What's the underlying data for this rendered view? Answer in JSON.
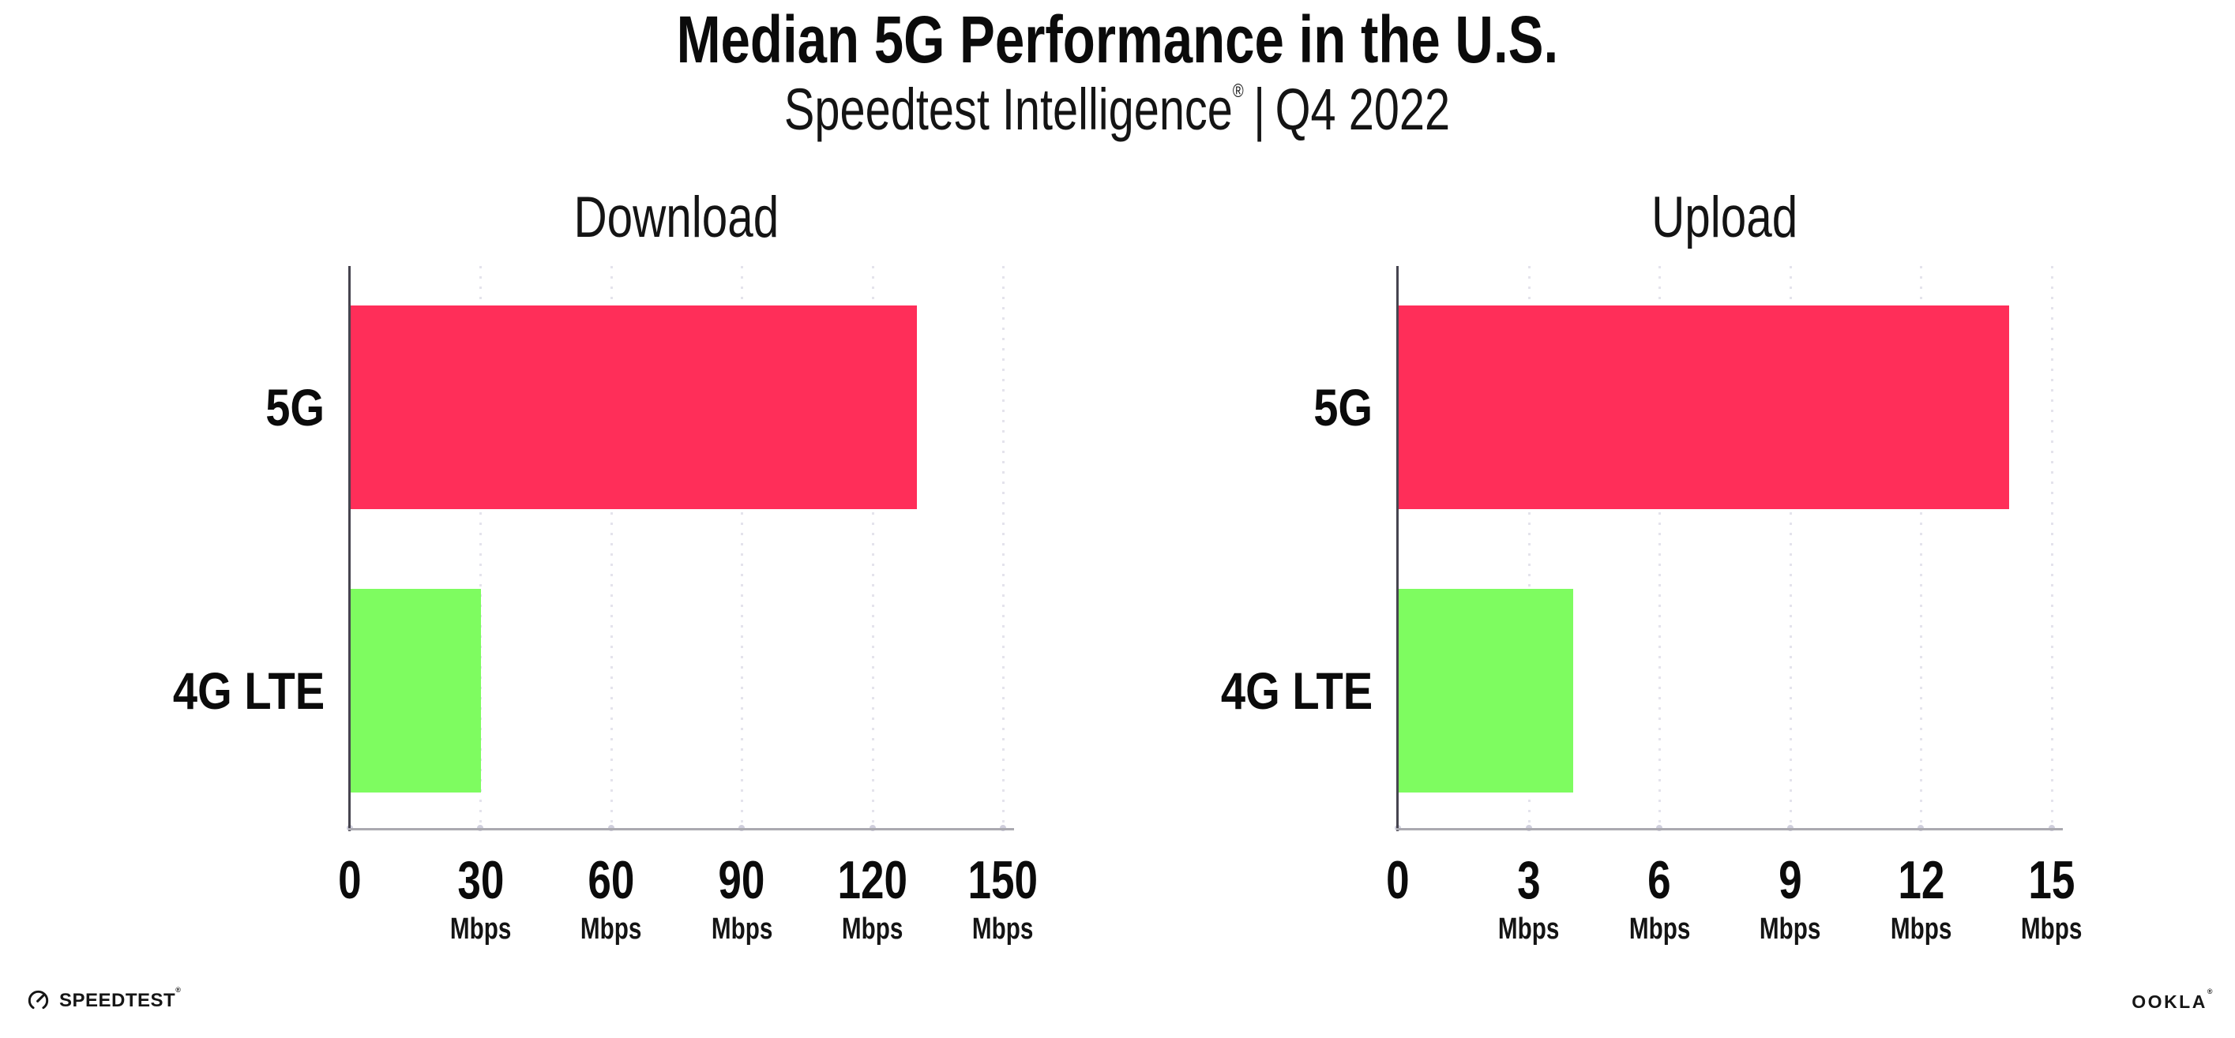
{
  "header": {
    "title": "Median 5G Performance in the U.S.",
    "subtitle_brand": "Speedtest Intelligence",
    "subtitle_reg": "®",
    "subtitle_divider": "|",
    "subtitle_period": "Q4 2022"
  },
  "footer": {
    "speedtest_logo_text": "SPEEDTEST",
    "speedtest_trademark": "®",
    "ookla_logo_text": "OOKLA",
    "ookla_trademark": "®"
  },
  "colors": {
    "bar_5g": "#ff2e59",
    "bar_4g": "#7efc60",
    "gridline": "#e4e3ec",
    "axis_baseline": "#aaa9b0",
    "axis_spine": "#46444f"
  },
  "chart_data": [
    {
      "type": "bar",
      "orientation": "horizontal",
      "title": "Download",
      "unit": "Mbps",
      "categories": [
        "5G",
        "4G LTE"
      ],
      "values": [
        130,
        30
      ],
      "colors": [
        "#ff2e59",
        "#7efc60"
      ],
      "xlim": [
        0,
        150
      ],
      "xticks": [
        0,
        30,
        60,
        90,
        120,
        150
      ],
      "grid": "dotted-vertical",
      "legend_position": "none"
    },
    {
      "type": "bar",
      "orientation": "horizontal",
      "title": "Upload",
      "unit": "Mbps",
      "categories": [
        "5G",
        "4G LTE"
      ],
      "values": [
        14,
        4
      ],
      "colors": [
        "#ff2e59",
        "#7efc60"
      ],
      "xlim": [
        0,
        15
      ],
      "xticks": [
        0,
        3,
        6,
        9,
        12,
        15
      ],
      "grid": "dotted-vertical",
      "legend_position": "none"
    }
  ]
}
